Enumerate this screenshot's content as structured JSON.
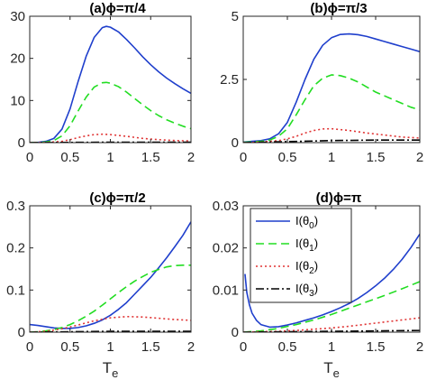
{
  "chart_data": [
    {
      "type": "line",
      "title": "(a)ϕ=π/4",
      "xlabel": "",
      "ylabel": "",
      "xlim": [
        0,
        2
      ],
      "ylim": [
        0,
        30
      ],
      "xticks": [
        0,
        0.5,
        1,
        1.5,
        2
      ],
      "xtick_labels": [
        "0",
        "0.5",
        "1",
        "1.5",
        "2"
      ],
      "yticks": [
        0,
        10,
        20,
        30
      ],
      "ytick_labels": [
        "0",
        "10",
        "20",
        "30"
      ],
      "grid": false,
      "series": [
        {
          "color": "#1f3fcc",
          "dash": "solid",
          "x": [
            0,
            0.1,
            0.2,
            0.3,
            0.4,
            0.5,
            0.6,
            0.7,
            0.8,
            0.9,
            0.95,
            1.0,
            1.1,
            1.2,
            1.3,
            1.4,
            1.5,
            1.6,
            1.7,
            1.8,
            1.9,
            2.0
          ],
          "y": [
            0,
            0.05,
            0.3,
            1.0,
            3.2,
            8.0,
            14.5,
            20.5,
            25.0,
            27.3,
            27.6,
            27.4,
            26.3,
            24.5,
            22.5,
            20.4,
            18.5,
            16.8,
            15.3,
            14.0,
            12.8,
            11.7
          ]
        },
        {
          "color": "#22dd22",
          "dash": "dashed",
          "x": [
            0,
            0.1,
            0.2,
            0.3,
            0.4,
            0.5,
            0.6,
            0.7,
            0.8,
            0.9,
            0.95,
            1.0,
            1.1,
            1.2,
            1.3,
            1.4,
            1.5,
            1.6,
            1.7,
            1.8,
            1.9,
            2.0
          ],
          "y": [
            0,
            0.03,
            0.15,
            0.5,
            1.6,
            4.0,
            7.5,
            10.8,
            13.2,
            14.2,
            14.3,
            14.1,
            13.3,
            12.0,
            10.5,
            9.0,
            7.6,
            6.4,
            5.4,
            4.6,
            3.9,
            3.3
          ]
        },
        {
          "color": "#e03333",
          "dash": "dotted",
          "x": [
            0,
            0.2,
            0.4,
            0.5,
            0.6,
            0.7,
            0.8,
            0.9,
            1.0,
            1.2,
            1.4,
            1.6,
            1.8,
            2.0
          ],
          "y": [
            0,
            0.03,
            0.3,
            0.7,
            1.2,
            1.6,
            1.9,
            2.0,
            1.9,
            1.5,
            1.0,
            0.7,
            0.5,
            0.4
          ]
        },
        {
          "color": "#000000",
          "dash": "dashdot",
          "x": [
            0,
            0.5,
            1.0,
            1.5,
            2.0
          ],
          "y": [
            0,
            0.05,
            0.1,
            0.1,
            0.1
          ]
        }
      ]
    },
    {
      "type": "line",
      "title": "(b)ϕ=π/3",
      "xlabel": "",
      "ylabel": "",
      "xlim": [
        0,
        2
      ],
      "ylim": [
        0,
        5
      ],
      "xticks": [
        0,
        0.5,
        1,
        1.5,
        2
      ],
      "xtick_labels": [
        "0",
        "0.5",
        "1",
        "1.5",
        "2"
      ],
      "yticks": [
        0,
        2.5,
        5
      ],
      "ytick_labels": [
        "0",
        "2.5",
        "5"
      ],
      "grid": false,
      "series": [
        {
          "color": "#1f3fcc",
          "dash": "solid",
          "x": [
            0,
            0.1,
            0.2,
            0.3,
            0.4,
            0.5,
            0.6,
            0.7,
            0.8,
            0.9,
            1.0,
            1.1,
            1.2,
            1.3,
            1.4,
            1.5,
            1.6,
            1.7,
            1.8,
            1.9,
            2.0
          ],
          "y": [
            0.02,
            0.05,
            0.08,
            0.15,
            0.35,
            0.8,
            1.6,
            2.5,
            3.3,
            3.85,
            4.15,
            4.28,
            4.3,
            4.27,
            4.2,
            4.1,
            4.0,
            3.9,
            3.8,
            3.7,
            3.6
          ]
        },
        {
          "color": "#22dd22",
          "dash": "dashed",
          "x": [
            0,
            0.1,
            0.2,
            0.3,
            0.4,
            0.5,
            0.6,
            0.7,
            0.8,
            0.9,
            1.0,
            1.1,
            1.2,
            1.3,
            1.4,
            1.5,
            1.6,
            1.7,
            1.8,
            1.9,
            2.0
          ],
          "y": [
            0.01,
            0.03,
            0.05,
            0.1,
            0.25,
            0.55,
            1.1,
            1.7,
            2.25,
            2.55,
            2.68,
            2.65,
            2.55,
            2.4,
            2.2,
            2.0,
            1.85,
            1.7,
            1.55,
            1.4,
            1.3
          ]
        },
        {
          "color": "#e03333",
          "dash": "dotted",
          "x": [
            0,
            0.2,
            0.4,
            0.5,
            0.6,
            0.7,
            0.8,
            0.9,
            1.0,
            1.2,
            1.4,
            1.6,
            1.8,
            2.0
          ],
          "y": [
            0,
            0.02,
            0.08,
            0.15,
            0.25,
            0.38,
            0.48,
            0.54,
            0.55,
            0.48,
            0.38,
            0.3,
            0.22,
            0.18
          ]
        },
        {
          "color": "#000000",
          "dash": "dashdot",
          "x": [
            0,
            0.5,
            1.0,
            1.5,
            2.0
          ],
          "y": [
            0,
            0.04,
            0.08,
            0.1,
            0.1
          ]
        }
      ]
    },
    {
      "type": "line",
      "title": "(c)ϕ=π/2",
      "xlabel": "T",
      "xlabel_sub": "e",
      "ylabel": "",
      "xlim": [
        0,
        2
      ],
      "ylim": [
        0,
        0.3
      ],
      "xticks": [
        0,
        0.5,
        1,
        1.5,
        2
      ],
      "xtick_labels": [
        "0",
        "0.5",
        "1",
        "1.5",
        "2"
      ],
      "yticks": [
        0,
        0.1,
        0.2,
        0.3
      ],
      "ytick_labels": [
        "0",
        "0.1",
        "0.2",
        "0.3"
      ],
      "grid": false,
      "series": [
        {
          "color": "#1f3fcc",
          "dash": "solid",
          "x": [
            0,
            0.1,
            0.2,
            0.3,
            0.4,
            0.5,
            0.6,
            0.7,
            0.8,
            0.9,
            1.0,
            1.1,
            1.2,
            1.3,
            1.4,
            1.5,
            1.6,
            1.7,
            1.8,
            1.9,
            2.0
          ],
          "y": [
            0.018,
            0.016,
            0.013,
            0.01,
            0.009,
            0.009,
            0.011,
            0.015,
            0.021,
            0.029,
            0.04,
            0.054,
            0.07,
            0.09,
            0.11,
            0.13,
            0.153,
            0.177,
            0.203,
            0.23,
            0.262
          ]
        },
        {
          "color": "#22dd22",
          "dash": "dashed",
          "x": [
            0,
            0.1,
            0.2,
            0.3,
            0.4,
            0.5,
            0.6,
            0.7,
            0.8,
            0.9,
            1.0,
            1.1,
            1.2,
            1.3,
            1.4,
            1.5,
            1.6,
            1.7,
            1.8,
            1.9,
            2.0
          ],
          "y": [
            0.0,
            0.001,
            0.003,
            0.006,
            0.011,
            0.018,
            0.027,
            0.038,
            0.05,
            0.064,
            0.079,
            0.094,
            0.108,
            0.121,
            0.132,
            0.142,
            0.149,
            0.155,
            0.158,
            0.159,
            0.159
          ]
        },
        {
          "color": "#e03333",
          "dash": "dotted",
          "x": [
            0,
            0.2,
            0.4,
            0.6,
            0.8,
            1.0,
            1.2,
            1.4,
            1.6,
            1.8,
            2.0
          ],
          "y": [
            0.0,
            0.002,
            0.008,
            0.017,
            0.027,
            0.034,
            0.037,
            0.036,
            0.033,
            0.03,
            0.028
          ]
        },
        {
          "color": "#000000",
          "dash": "dashdot",
          "x": [
            0,
            0.5,
            1.0,
            1.5,
            2.0
          ],
          "y": [
            0.0,
            0.001,
            0.002,
            0.002,
            0.002
          ]
        }
      ]
    },
    {
      "type": "line",
      "title": "(d)ϕ=π",
      "xlabel": "T",
      "xlabel_sub": "e",
      "ylabel": "",
      "xlim": [
        0,
        2
      ],
      "ylim": [
        0,
        0.03
      ],
      "xticks": [
        0,
        0.5,
        1,
        1.5,
        2
      ],
      "xtick_labels": [
        "0",
        "0.5",
        "1",
        "1.5",
        "2"
      ],
      "yticks": [
        0,
        0.01,
        0.02,
        0.03
      ],
      "ytick_labels": [
        "0",
        "0.01",
        "0.02",
        "0.03"
      ],
      "grid": false,
      "legend_position": "top-left",
      "legend": [
        {
          "base": "I(θ",
          "sub": "0",
          "end": ")"
        },
        {
          "base": "I(θ",
          "sub": "1",
          "end": ")"
        },
        {
          "base": "I(θ",
          "sub": "2",
          "end": ")"
        },
        {
          "base": "I(θ",
          "sub": "3",
          "end": ")"
        }
      ],
      "series": [
        {
          "color": "#1f3fcc",
          "dash": "solid",
          "x": [
            0.02,
            0.04,
            0.07,
            0.1,
            0.15,
            0.2,
            0.3,
            0.4,
            0.5,
            0.6,
            0.7,
            0.8,
            0.9,
            1.0,
            1.1,
            1.2,
            1.3,
            1.4,
            1.5,
            1.6,
            1.7,
            1.8,
            1.9,
            2.0
          ],
          "y": [
            0.0138,
            0.0095,
            0.0065,
            0.0045,
            0.0028,
            0.0018,
            0.0012,
            0.0013,
            0.0017,
            0.0022,
            0.0028,
            0.0034,
            0.0041,
            0.0049,
            0.0058,
            0.0068,
            0.008,
            0.0094,
            0.011,
            0.0128,
            0.0149,
            0.0173,
            0.0201,
            0.0233
          ]
        },
        {
          "color": "#22dd22",
          "dash": "dashed",
          "x": [
            0,
            0.2,
            0.4,
            0.6,
            0.8,
            1.0,
            1.2,
            1.4,
            1.6,
            1.8,
            2.0
          ],
          "y": [
            0.0,
            0.0003,
            0.0009,
            0.0018,
            0.0029,
            0.0042,
            0.0057,
            0.0072,
            0.0087,
            0.0103,
            0.012
          ]
        },
        {
          "color": "#e03333",
          "dash": "dotted",
          "x": [
            0,
            0.2,
            0.4,
            0.6,
            0.8,
            1.0,
            1.2,
            1.4,
            1.6,
            1.8,
            2.0
          ],
          "y": [
            0.0,
            0.0001,
            0.0002,
            0.0004,
            0.0007,
            0.001,
            0.0014,
            0.0019,
            0.0024,
            0.0029,
            0.0034
          ]
        },
        {
          "color": "#000000",
          "dash": "dashdot",
          "x": [
            0,
            0.5,
            1.0,
            1.5,
            2.0
          ],
          "y": [
            0.0,
            0.0001,
            0.0002,
            0.0003,
            0.0004
          ]
        }
      ]
    }
  ]
}
